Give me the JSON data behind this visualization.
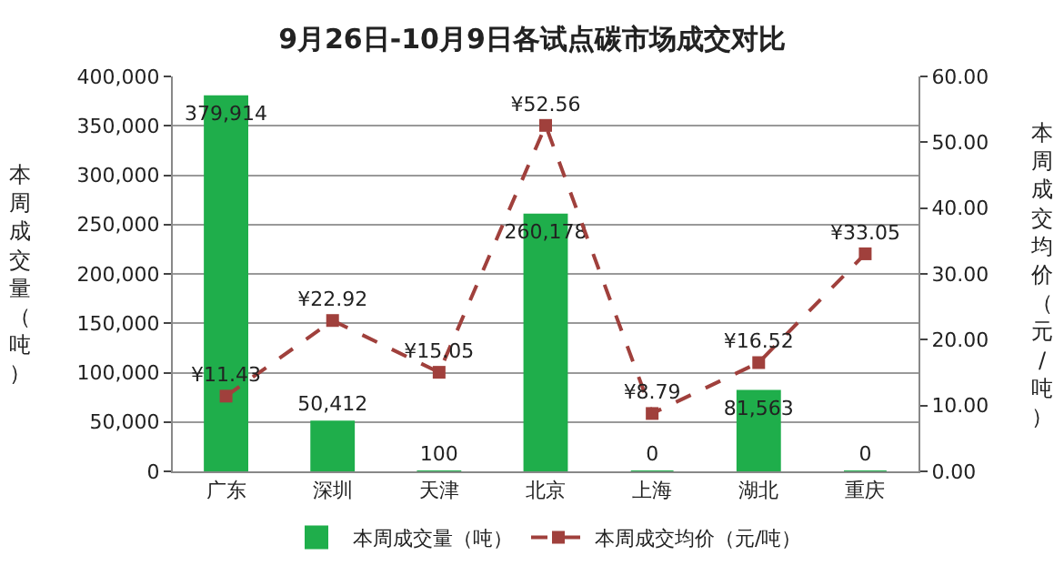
{
  "chart_data": {
    "type": "bar",
    "title": "9月26日-10月9日各试点碳市场成交对比",
    "categories": [
      "广东",
      "深圳",
      "天津",
      "北京",
      "上海",
      "湖北",
      "重庆"
    ],
    "ylabel": "本周成交量（吨）",
    "y2label": "本周成交均价（元/吨）",
    "series": [
      {
        "name": "本周成交量（吨）",
        "color": "#1fae4b",
        "values": [
          379914,
          50412,
          100,
          260178,
          0,
          81563,
          0
        ],
        "value_labels": [
          "379,914",
          "50,412",
          "100",
          "260,178",
          "0",
          "81,563",
          "0"
        ]
      },
      {
        "name": "本周成交均价（元/吨）",
        "type": "line",
        "axis": "y2",
        "color": "#a0403c",
        "marker": "square",
        "line_style": "dashed",
        "values": [
          11.43,
          22.92,
          15.05,
          52.56,
          8.79,
          16.52,
          33.05
        ],
        "value_labels": [
          "¥11.43",
          "¥22.92",
          "¥15.05",
          "¥52.56",
          "¥8.79",
          "¥16.52",
          "¥33.05"
        ]
      }
    ],
    "ylim": [
      0,
      400000
    ],
    "yticks": [
      {
        "value": 0,
        "label": "0"
      },
      {
        "value": 50000,
        "label": "50,000"
      },
      {
        "value": 100000,
        "label": "100,000"
      },
      {
        "value": 150000,
        "label": "150,000"
      },
      {
        "value": 200000,
        "label": "200,000"
      },
      {
        "value": 250000,
        "label": "250,000"
      },
      {
        "value": 300000,
        "label": "300,000"
      },
      {
        "value": 350000,
        "label": "350,000"
      },
      {
        "value": 400000,
        "label": "400,000"
      }
    ],
    "y2lim": [
      0,
      60
    ],
    "y2ticks": [
      {
        "value": 0,
        "label": "0.00"
      },
      {
        "value": 10,
        "label": "10.00"
      },
      {
        "value": 20,
        "label": "20.00"
      },
      {
        "value": 30,
        "label": "30.00"
      },
      {
        "value": 40,
        "label": "40.00"
      },
      {
        "value": 50,
        "label": "50.00"
      },
      {
        "value": 60,
        "label": "60.00"
      }
    ],
    "grid": "y",
    "legend": "bottom"
  }
}
